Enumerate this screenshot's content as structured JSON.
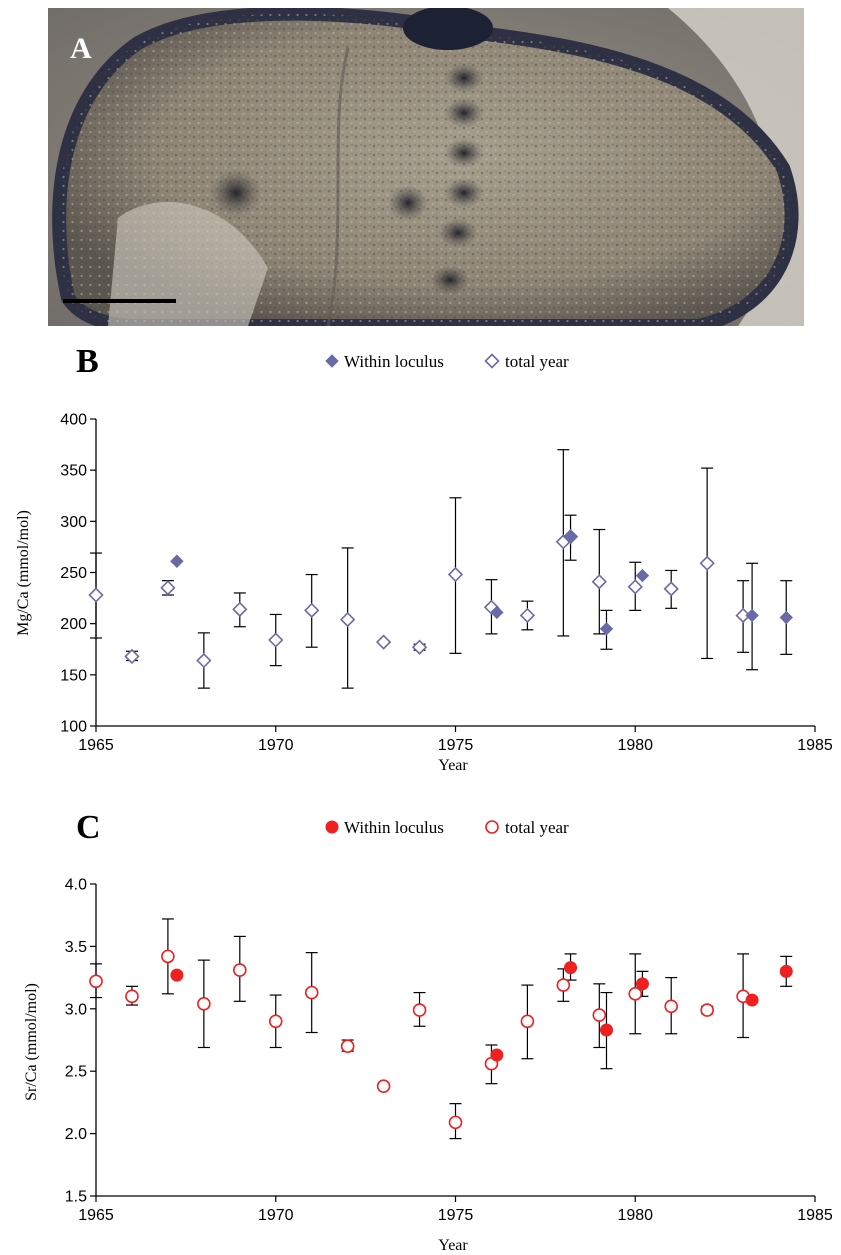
{
  "photo": {
    "label": "A"
  },
  "colors": {
    "mg": "#6a6aa6",
    "sr": "#ee2020",
    "axis": "#000000"
  },
  "chart_data": [
    {
      "panel": "B",
      "type": "scatter",
      "xlabel": "Year",
      "ylabel": "Mg/Ca (mmol/mol)",
      "xlim": [
        1965,
        1985
      ],
      "ylim": [
        100,
        400
      ],
      "xticks": [
        1965,
        1970,
        1975,
        1980,
        1985
      ],
      "yticks": [
        100,
        150,
        200,
        250,
        300,
        350,
        400
      ],
      "legend": {
        "placement": "top-center",
        "within": "Within loculus",
        "total": "total year"
      },
      "series": [
        {
          "name": "Within loculus",
          "marker": "filled-diamond",
          "points": [
            {
              "x": 1967.25,
              "y": 261
            },
            {
              "x": 1976.15,
              "y": 211
            },
            {
              "x": 1978.2,
              "y": 285
            },
            {
              "x": 1979.2,
              "y": 195,
              "lo": 175,
              "hi": 213
            },
            {
              "x": 1980.2,
              "y": 247
            },
            {
              "x": 1983.25,
              "y": 208,
              "lo": 155,
              "hi": 259
            },
            {
              "x": 1984.2,
              "y": 206,
              "lo": 170,
              "hi": 242
            }
          ]
        },
        {
          "name": "total year",
          "marker": "open-diamond",
          "points": [
            {
              "x": 1965,
              "y": 228,
              "lo": 186,
              "hi": 269
            },
            {
              "x": 1966,
              "y": 168,
              "lo": 164,
              "hi": 173
            },
            {
              "x": 1967,
              "y": 235,
              "lo": 228,
              "hi": 242
            },
            {
              "x": 1968,
              "y": 164,
              "lo": 137,
              "hi": 191
            },
            {
              "x": 1969,
              "y": 214,
              "lo": 197,
              "hi": 230
            },
            {
              "x": 1970,
              "y": 184,
              "lo": 159,
              "hi": 209
            },
            {
              "x": 1971,
              "y": 213,
              "lo": 177,
              "hi": 248
            },
            {
              "x": 1972,
              "y": 204,
              "lo": 137,
              "hi": 274
            },
            {
              "x": 1973,
              "y": 182
            },
            {
              "x": 1974,
              "y": 177,
              "lo": 174,
              "hi": 180
            },
            {
              "x": 1975,
              "y": 248,
              "lo": 171,
              "hi": 323
            },
            {
              "x": 1976,
              "y": 216,
              "lo": 190,
              "hi": 243
            },
            {
              "x": 1977,
              "y": 208,
              "lo": 194,
              "hi": 222
            },
            {
              "x": 1978,
              "y": 280,
              "lo": 188,
              "hi": 370
            },
            {
              "x": 1978.2,
              "y": 285,
              "lo": 262,
              "hi": 306
            },
            {
              "x": 1979,
              "y": 241,
              "lo": 190,
              "hi": 292
            },
            {
              "x": 1980,
              "y": 236,
              "lo": 213,
              "hi": 260
            },
            {
              "x": 1981,
              "y": 234,
              "lo": 215,
              "hi": 252
            },
            {
              "x": 1982,
              "y": 259,
              "lo": 166,
              "hi": 352
            },
            {
              "x": 1983,
              "y": 208,
              "lo": 172,
              "hi": 242
            }
          ]
        }
      ]
    },
    {
      "panel": "C",
      "type": "scatter",
      "xlabel": "Year",
      "ylabel": "Sr/Ca (mmol/mol)",
      "xlim": [
        1965,
        1985
      ],
      "ylim": [
        1.5,
        4.0
      ],
      "xticks": [
        1965,
        1970,
        1975,
        1980,
        1985
      ],
      "yticks": [
        1.5,
        2.0,
        2.5,
        3.0,
        3.5,
        4.0
      ],
      "legend": {
        "placement": "top-center",
        "within": "Within loculus",
        "total": "total year"
      },
      "series": [
        {
          "name": "Within loculus",
          "marker": "filled-circle",
          "points": [
            {
              "x": 1967.25,
              "y": 3.27
            },
            {
              "x": 1976.15,
              "y": 2.63
            },
            {
              "x": 1978.2,
              "y": 3.33,
              "lo": 3.23,
              "hi": 3.44
            },
            {
              "x": 1979.2,
              "y": 2.83,
              "lo": 2.52,
              "hi": 3.13
            },
            {
              "x": 1980.2,
              "y": 3.2,
              "lo": 3.1,
              "hi": 3.3
            },
            {
              "x": 1983.25,
              "y": 3.07
            },
            {
              "x": 1984.2,
              "y": 3.3,
              "lo": 3.18,
              "hi": 3.42
            }
          ]
        },
        {
          "name": "total year",
          "marker": "open-circle",
          "points": [
            {
              "x": 1965,
              "y": 3.22,
              "lo": 3.09,
              "hi": 3.36
            },
            {
              "x": 1966,
              "y": 3.1,
              "lo": 3.03,
              "hi": 3.18
            },
            {
              "x": 1967,
              "y": 3.42,
              "lo": 3.12,
              "hi": 3.72
            },
            {
              "x": 1968,
              "y": 3.04,
              "lo": 2.69,
              "hi": 3.39
            },
            {
              "x": 1969,
              "y": 3.31,
              "lo": 3.06,
              "hi": 3.58
            },
            {
              "x": 1970,
              "y": 2.9,
              "lo": 2.69,
              "hi": 3.11
            },
            {
              "x": 1971,
              "y": 3.13,
              "lo": 2.81,
              "hi": 3.45
            },
            {
              "x": 1972,
              "y": 2.7,
              "lo": 2.66,
              "hi": 2.75
            },
            {
              "x": 1973,
              "y": 2.38
            },
            {
              "x": 1974,
              "y": 2.99,
              "lo": 2.86,
              "hi": 3.13
            },
            {
              "x": 1975,
              "y": 2.09,
              "lo": 1.96,
              "hi": 2.24
            },
            {
              "x": 1976,
              "y": 2.56,
              "lo": 2.4,
              "hi": 2.71
            },
            {
              "x": 1977,
              "y": 2.9,
              "lo": 2.6,
              "hi": 3.19
            },
            {
              "x": 1978,
              "y": 3.19,
              "lo": 3.06,
              "hi": 3.32
            },
            {
              "x": 1979,
              "y": 2.95,
              "lo": 2.69,
              "hi": 3.2
            },
            {
              "x": 1980,
              "y": 3.12,
              "lo": 2.8,
              "hi": 3.44
            },
            {
              "x": 1981,
              "y": 3.02,
              "lo": 2.8,
              "hi": 3.25
            },
            {
              "x": 1982,
              "y": 2.99,
              "lo": 2.96,
              "hi": 3.02
            },
            {
              "x": 1983,
              "y": 3.1,
              "lo": 2.77,
              "hi": 3.44
            }
          ]
        }
      ]
    }
  ]
}
